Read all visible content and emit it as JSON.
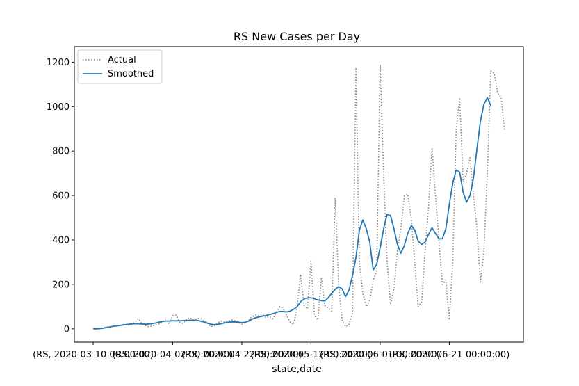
{
  "chart_data": {
    "type": "line",
    "title": "RS New Cases per Day",
    "xlabel": "state,date",
    "ylabel": "",
    "ylim": [
      -60,
      1270
    ],
    "grid": false,
    "legend_placement": "top-left",
    "x_ticks": [
      {
        "index": 0,
        "label": "(RS, 2020-03-10 00:00:00)"
      },
      {
        "index": 23,
        "label": "(RS, 2020-04-02 00:00:00)"
      },
      {
        "index": 43,
        "label": "(RS, 2020-04-22 00:00:00)"
      },
      {
        "index": 63,
        "label": "(RS, 2020-05-12 00:00:00)"
      },
      {
        "index": 83,
        "label": "(RS, 2020-06-01 00:00:00)"
      },
      {
        "index": 103,
        "label": "(RS, 2020-06-21 00:00:00)"
      }
    ],
    "y_ticks": [
      0,
      200,
      400,
      600,
      800,
      1000,
      1200
    ],
    "series": [
      {
        "name": "Actual",
        "color": "#808080",
        "style": "dotted",
        "values": [
          0,
          1,
          2,
          5,
          8,
          10,
          12,
          13,
          14,
          22,
          15,
          20,
          28,
          46,
          25,
          15,
          10,
          12,
          16,
          22,
          30,
          45,
          20,
          60,
          62,
          30,
          25,
          45,
          50,
          40,
          45,
          48,
          35,
          28,
          10,
          12,
          25,
          35,
          30,
          35,
          40,
          36,
          30,
          20,
          28,
          40,
          55,
          62,
          58,
          65,
          50,
          55,
          45,
          75,
          100,
          90,
          60,
          30,
          20,
          100,
          245,
          105,
          90,
          305,
          60,
          40,
          230,
          105,
          95,
          80,
          590,
          200,
          40,
          10,
          20,
          70,
          1175,
          300,
          160,
          100,
          130,
          220,
          260,
          1190,
          700,
          300,
          110,
          180,
          350,
          450,
          600,
          605,
          500,
          300,
          100,
          120,
          350,
          550,
          815,
          600,
          400,
          200,
          220,
          40,
          300,
          900,
          1040,
          660,
          700,
          770,
          600,
          450,
          210,
          350,
          700,
          1160,
          1150,
          1060,
          1040,
          890
        ]
      },
      {
        "name": "Smoothed",
        "color": "#1f77b4",
        "style": "solid",
        "values": [
          0,
          0,
          1,
          3,
          6,
          9,
          12,
          14,
          16,
          18,
          20,
          22,
          23,
          23,
          22,
          21,
          22,
          23,
          26,
          30,
          33,
          35,
          35,
          36,
          36,
          36,
          37,
          38,
          39,
          39,
          38,
          35,
          31,
          26,
          21,
          19,
          20,
          23,
          27,
          30,
          31,
          31,
          30,
          28,
          30,
          35,
          44,
          50,
          54,
          57,
          60,
          64,
          68,
          74,
          78,
          78,
          76,
          80,
          88,
          100,
          122,
          135,
          139,
          140,
          135,
          130,
          127,
          125,
          140,
          160,
          178,
          190,
          180,
          145,
          175,
          240,
          320,
          445,
          490,
          450,
          390,
          265,
          290,
          365,
          450,
          515,
          510,
          450,
          380,
          340,
          375,
          430,
          465,
          445,
          395,
          380,
          390,
          425,
          455,
          430,
          405,
          405,
          450,
          560,
          655,
          715,
          705,
          615,
          570,
          600,
          680,
          810,
          935,
          1010,
          1040,
          1005
        ]
      }
    ]
  }
}
